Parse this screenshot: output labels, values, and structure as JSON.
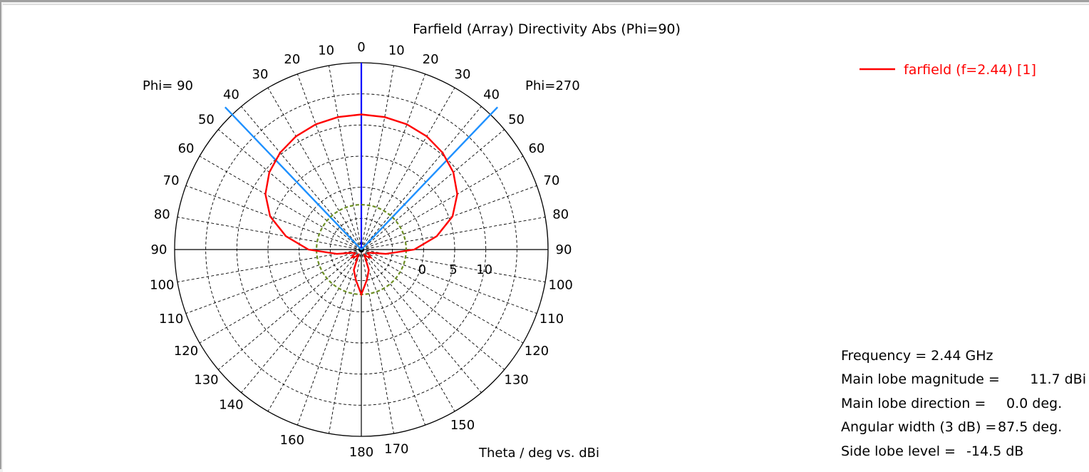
{
  "chart_data": {
    "type": "polar",
    "title": "Farfield (Array) Directivity Abs (Phi=90)",
    "left_half_label": "Phi= 90",
    "right_half_label": "Phi=270",
    "axis_label": "Theta / deg vs. dBi",
    "angle_tick_labels": {
      "left": [
        "0",
        "10",
        "20",
        "30",
        "40",
        "50",
        "60",
        "70",
        "80",
        "90",
        "100",
        "110",
        "120",
        "130",
        "140",
        "150",
        "160",
        "170",
        "180"
      ],
      "right": [
        "0",
        "10",
        "20",
        "30",
        "40",
        "50",
        "60",
        "70",
        "80",
        "90",
        "100",
        "110",
        "120",
        "130",
        "140",
        "150",
        "160",
        "170",
        "180"
      ],
      "shown_left": [
        "10",
        "20",
        "30",
        "40",
        "50",
        "60",
        "70",
        "80",
        "90",
        "100",
        "110",
        "120",
        "130",
        "140",
        "160",
        "180"
      ],
      "shown_right": [
        "0",
        "10",
        "20",
        "30",
        "40",
        "50",
        "60",
        "70",
        "80",
        "90",
        "100",
        "110",
        "120",
        "130",
        "150",
        "170"
      ]
    },
    "radial_range_dBi": [
      -10,
      20
    ],
    "radial_ticks": [
      "0",
      "5",
      "10"
    ],
    "series": [
      {
        "name": "farfield (f=2.44) [1]",
        "color": "#ff0000",
        "theta_deg": [
          0,
          10,
          20,
          30,
          40,
          50,
          60,
          70,
          80,
          90,
          100,
          110,
          120,
          130,
          140,
          150,
          160,
          170,
          180,
          -10,
          -20,
          -30,
          -40,
          -50,
          -60,
          -70,
          -80,
          -90,
          -100,
          -110,
          -120,
          -130,
          -140,
          -150,
          -160,
          -170
        ],
        "directivity_dBi": [
          11.7,
          11.6,
          11.4,
          11.0,
          10.3,
          9.3,
          7.8,
          5.6,
          2.3,
          -1.5,
          -6.0,
          -8.5,
          -8.8,
          -8.0,
          -8.5,
          -9.0,
          -6.5,
          -5.0,
          -2.8,
          11.6,
          11.4,
          11.0,
          10.3,
          9.3,
          7.8,
          5.6,
          2.3,
          -1.5,
          -6.0,
          -8.5,
          -8.8,
          -8.0,
          -8.5,
          -9.0,
          -6.5,
          -5.0
        ]
      }
    ],
    "markers": {
      "main_lobe_direction_deg": 0,
      "main_lobe_color": "#0000ff",
      "beamwidth_lines_deg": [
        -43.75,
        43.75
      ],
      "beamwidth_color": "#1e90ff",
      "side_lobe_level_circle_dBi": -2.8,
      "side_lobe_color": "#6b8e23"
    },
    "legend_position": "top-right"
  },
  "info": {
    "frequency": "Frequency = 2.44 GHz",
    "main_lobe_magnitude_label": "Main lobe magnitude =",
    "main_lobe_magnitude_value": "11.7 dBi",
    "main_lobe_direction_label": "Main lobe direction =",
    "main_lobe_direction_value": "0.0 deg.",
    "angular_width_label": "Angular width (3 dB) =",
    "angular_width_value": "87.5 deg.",
    "side_lobe_label": "Side lobe level =",
    "side_lobe_value": "-14.5 dB"
  }
}
